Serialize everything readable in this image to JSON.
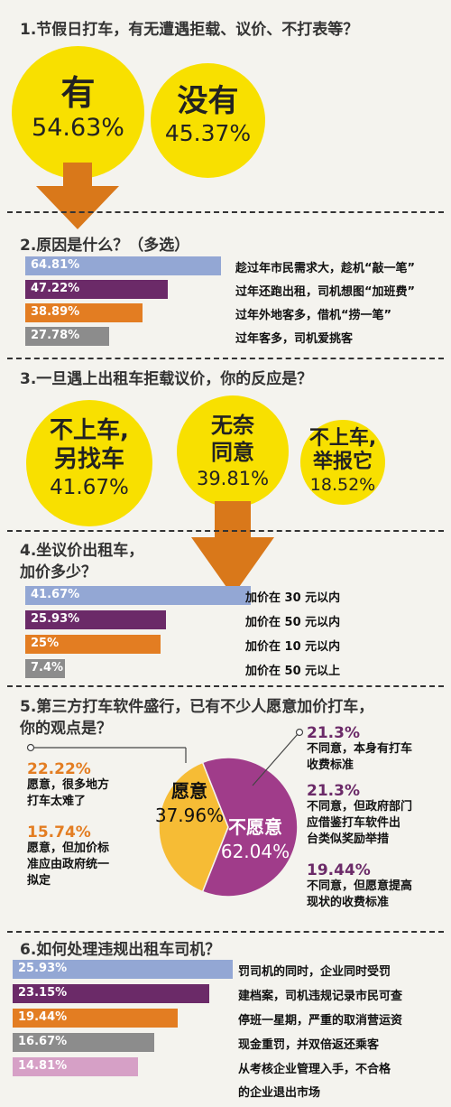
{
  "colors": {
    "blue": "#93a7d4",
    "purple": "#6b2a68",
    "orange": "#e37d22",
    "gray": "#8c8c8c",
    "pink": "#d6a0c6",
    "yellow": "#f8e000",
    "arrow": "#d9781a"
  },
  "q1": {
    "title": "1.节假日打车，有无遭遇拒载、议价、不打表等？",
    "yes_label": "有",
    "yes_pct": "54.63%",
    "no_label": "没有",
    "no_pct": "45.37%"
  },
  "q2": {
    "title": "2.原因是什么？（多选）",
    "bars": [
      {
        "pct": "64.81%",
        "label": "趁过年市民需求大，趁机“敲一笔”"
      },
      {
        "pct": "47.22%",
        "label": "过年还跑出租，司机想图“加班费”"
      },
      {
        "pct": "38.89%",
        "label": "过年外地客多，借机“捞一笔”"
      },
      {
        "pct": "27.78%",
        "label": "过年客多，司机爱挑客"
      }
    ]
  },
  "q3": {
    "title": "3.一旦遇上出租车拒载议价，你的反应是？",
    "c1_line1": "不上车,",
    "c1_line2": "另找车",
    "c1_pct": "41.67%",
    "c2_line1": "无奈",
    "c2_line2": "同意",
    "c2_pct": "39.81%",
    "c3_line1": "不上车,",
    "c3_line2": "举报它",
    "c3_pct": "18.52%"
  },
  "q4": {
    "title_line1": "4.坐议价出租车，",
    "title_line2": "加价多少？",
    "bars": [
      {
        "pct": "41.67%",
        "label": "加价在 30 元以内"
      },
      {
        "pct": "25.93%",
        "label": "加价在 50 元以内"
      },
      {
        "pct": "25%",
        "label": "加价在 10 元以内"
      },
      {
        "pct": "7.4%",
        "label": "加价在 50 元以上"
      }
    ]
  },
  "q5": {
    "title_line1": "5.第三方打车软件盛行，已有不少人愿意加价打车，",
    "title_line2": "你的观点是？",
    "yes_label": "愿意",
    "yes_pct": "37.96%",
    "no_label": "不愿意",
    "no_pct": "62.04%",
    "left_notes": [
      {
        "pct": "22.22%",
        "line1": "愿意，很多地方",
        "line2": "打车太难了"
      },
      {
        "pct": "15.74%",
        "line1": "愿意，但加价标",
        "line2": "准应由政府统一",
        "line3": "拟定"
      }
    ],
    "right_notes": [
      {
        "pct": "21.3%",
        "line1": "不同意，本身有打车",
        "line2": "收费标准"
      },
      {
        "pct": "21.3%",
        "line1": "不同意，但政府部门",
        "line2": "应借鉴打车软件出",
        "line3": "台类似奖励举措"
      },
      {
        "pct": "19.44%",
        "line1": "不同意，但愿意提高",
        "line2": "现状的收费标准"
      }
    ]
  },
  "q6": {
    "title": "6.如何处理违规出租车司机？",
    "bars": [
      {
        "pct": "25.93%",
        "label": "罚司机的同时，企业同时受罚"
      },
      {
        "pct": "23.15%",
        "label": "建档案，司机违规记录市民可查"
      },
      {
        "pct": "19.44%",
        "label": "停班一星期，严重的取消营运资"
      },
      {
        "pct": "16.67%",
        "label": "现金重罚，并双倍返还乘客"
      },
      {
        "pct": "14.81%",
        "label": "从考核企业管理入手，不合格",
        "label2": "的企业退出市场"
      }
    ]
  },
  "chart_data": [
    {
      "type": "bubble",
      "title": "1.节假日打车，有无遭遇拒载、议价、不打表等？",
      "categories": [
        "有",
        "没有"
      ],
      "values": [
        54.63,
        45.37
      ]
    },
    {
      "type": "bar",
      "title": "2.原因是什么？（多选）",
      "categories": [
        "趁过年市民需求大，趁机“敲一笔”",
        "过年还跑出租，司机想图“加班费”",
        "过年外地客多，借机“捞一笔”",
        "过年客多，司机爱挑客"
      ],
      "values": [
        64.81,
        47.22,
        38.89,
        27.78
      ]
    },
    {
      "type": "bubble",
      "title": "3.一旦遇上出租车拒载议价，你的反应是？",
      "categories": [
        "不上车,另找车",
        "无奈同意",
        "不上车,举报它"
      ],
      "values": [
        41.67,
        39.81,
        18.52
      ]
    },
    {
      "type": "bar",
      "title": "4.坐议价出租车，加价多少？",
      "categories": [
        "加价在 30 元以内",
        "加价在 50 元以内",
        "加价在 10 元以内",
        "加价在 50 元以上"
      ],
      "values": [
        41.67,
        25.93,
        25,
        7.4
      ]
    },
    {
      "type": "pie",
      "title": "5.第三方打车软件盛行，已有不少人愿意加价打车，你的观点是？",
      "categories": [
        "愿意",
        "不愿意"
      ],
      "values": [
        37.96,
        62.04
      ],
      "breakdown": {
        "愿意": [
          22.22,
          15.74
        ],
        "不愿意": [
          21.3,
          21.3,
          19.44
        ]
      }
    },
    {
      "type": "bar",
      "title": "6.如何处理违规出租车司机？",
      "categories": [
        "罚司机的同时，企业同时受罚",
        "建档案，司机违规记录市民可查",
        "停班一星期，严重的取消营运资",
        "现金重罚，并双倍返还乘客",
        "从考核企业管理入手，不合格的企业退出市场"
      ],
      "values": [
        25.93,
        23.15,
        19.44,
        16.67,
        14.81
      ]
    }
  ]
}
